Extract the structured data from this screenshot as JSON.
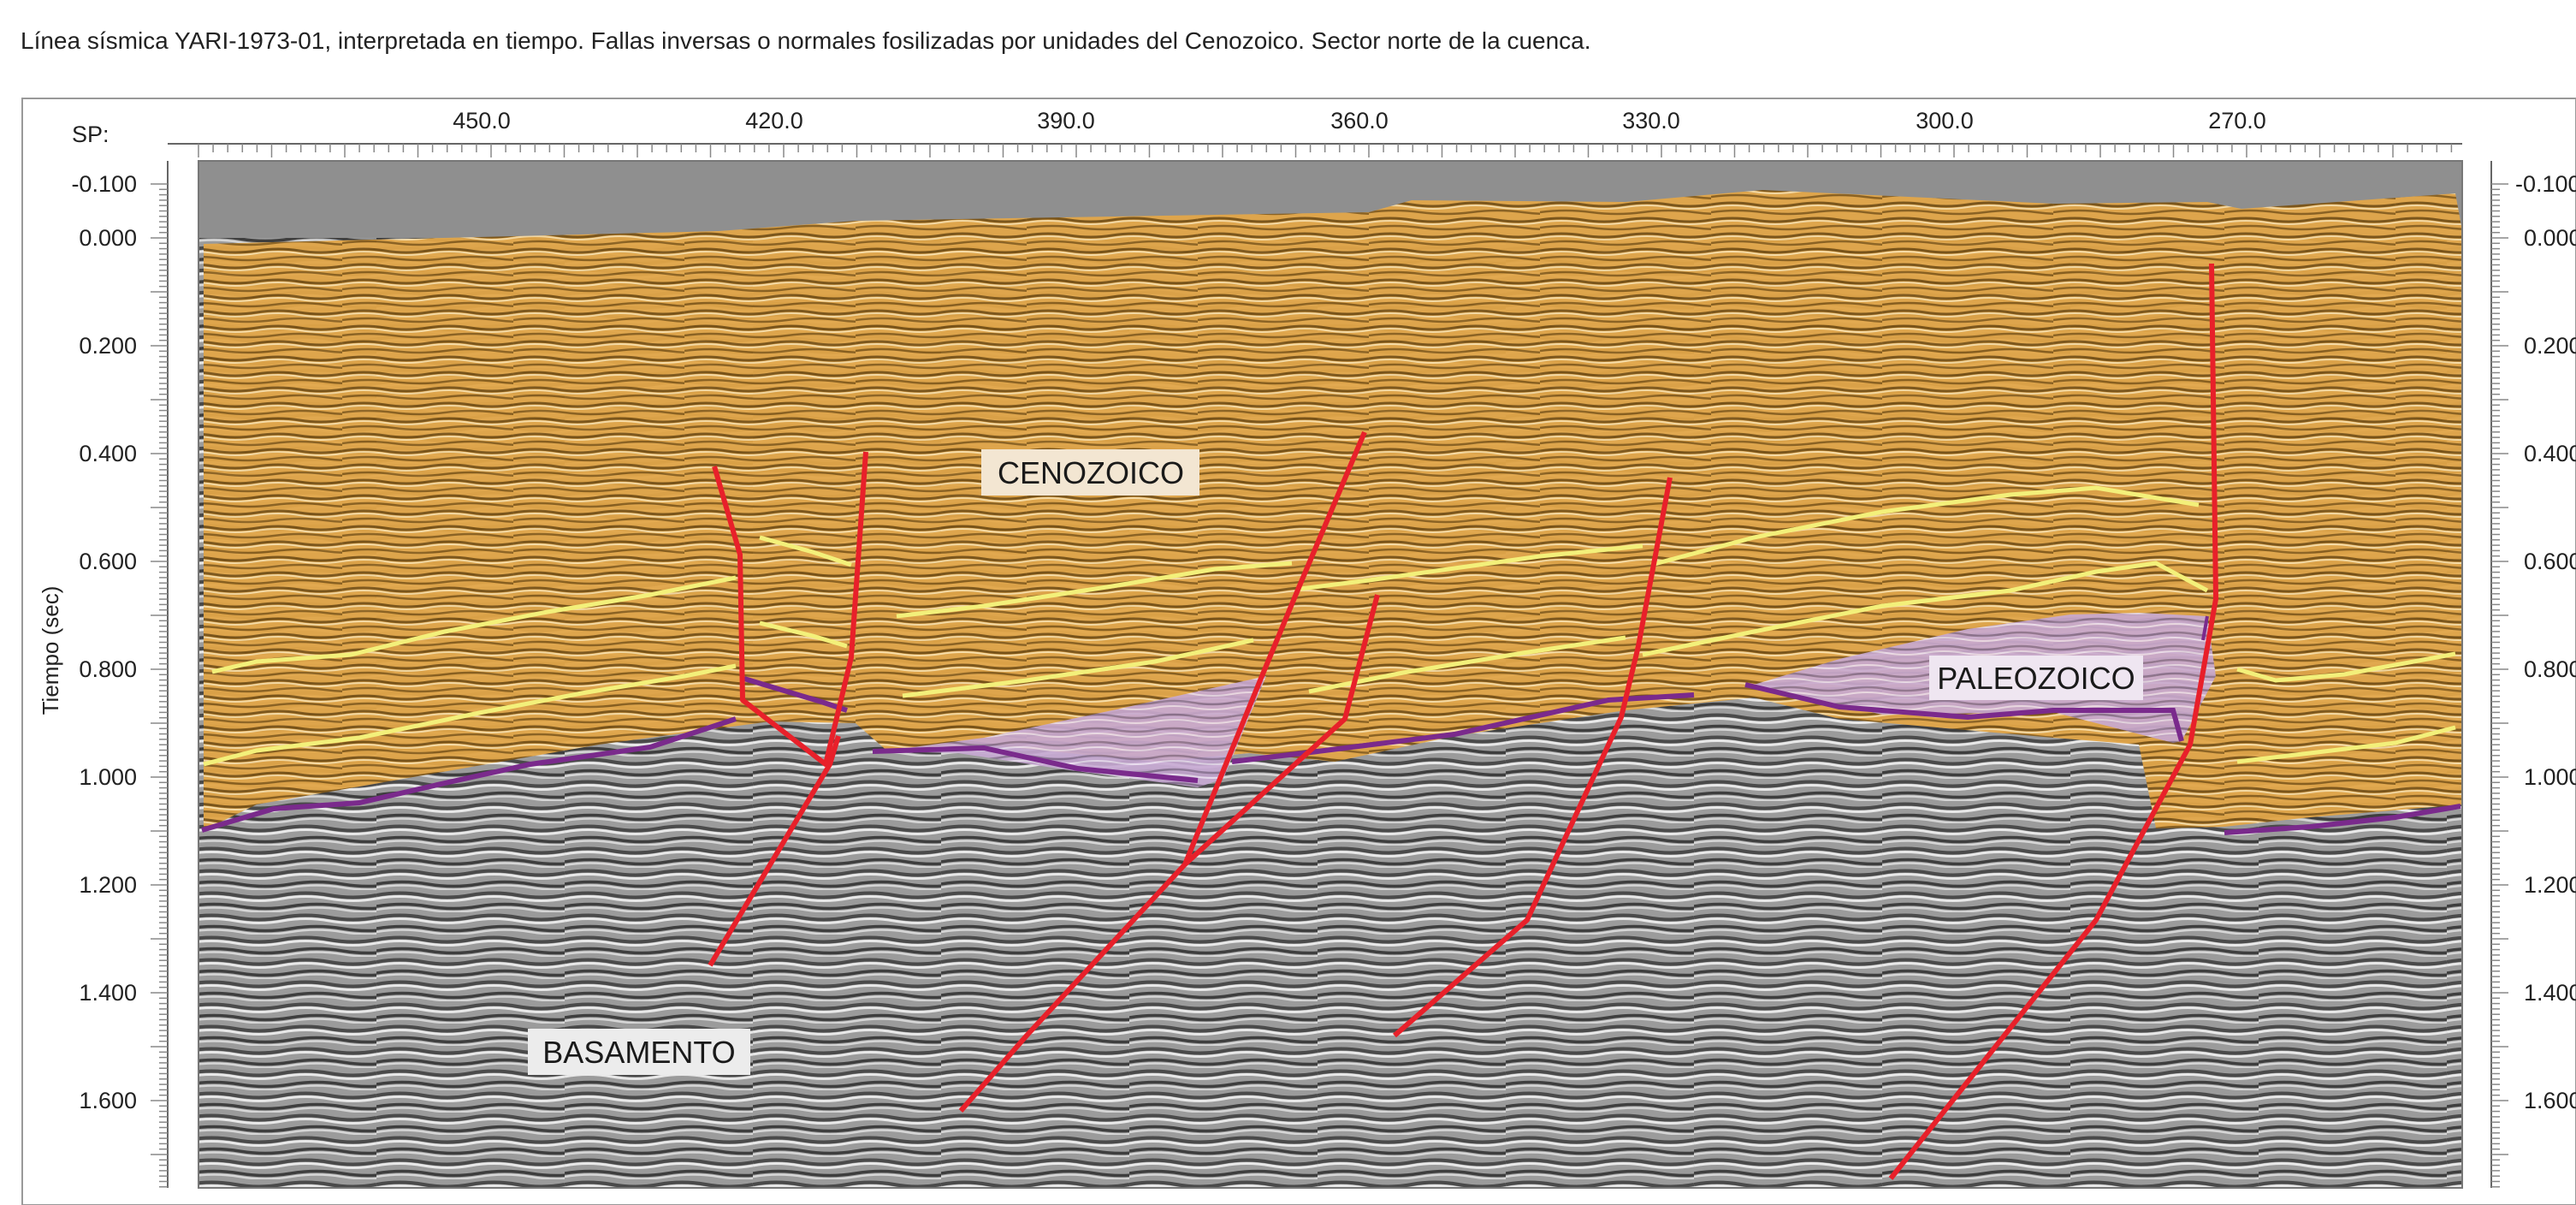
{
  "caption": "Línea sísmica YARI-1973-01, interpretada en tiempo. Fallas inversas o normales fosilizadas por unidades del Cenozoico. Sector norte de la cuenca.",
  "axes": {
    "sp_label": "SP:",
    "sp_ticks": [
      "450.0",
      "420.0",
      "390.0",
      "360.0",
      "330.0",
      "300.0",
      "270.0"
    ],
    "time_label": "Tiempo (sec)",
    "time_ticks": [
      "-0.100",
      "0.000",
      "0.200",
      "0.400",
      "0.600",
      "0.800",
      "1.000",
      "1.200",
      "1.400",
      "1.600"
    ],
    "time_ticks_right": [
      "-0.100",
      "0.000",
      "0.200",
      "0.400",
      "0.600",
      "0.800",
      "1.000",
      "1.200",
      "1.400",
      "1.600"
    ]
  },
  "units": {
    "cenozoico": "CENOZOICO",
    "paleozoico": "PALEOZOICO",
    "basamento": "BASAMENTO"
  },
  "colors": {
    "cenozoico_fill": "#e8a73c",
    "paleozoico_fill": "#c9a6d6",
    "basement_horizon": "#7a2a8c",
    "fault": "#e8202a",
    "horizon": "#f3f07a",
    "seismic_gray": "#8a8a8a"
  }
}
